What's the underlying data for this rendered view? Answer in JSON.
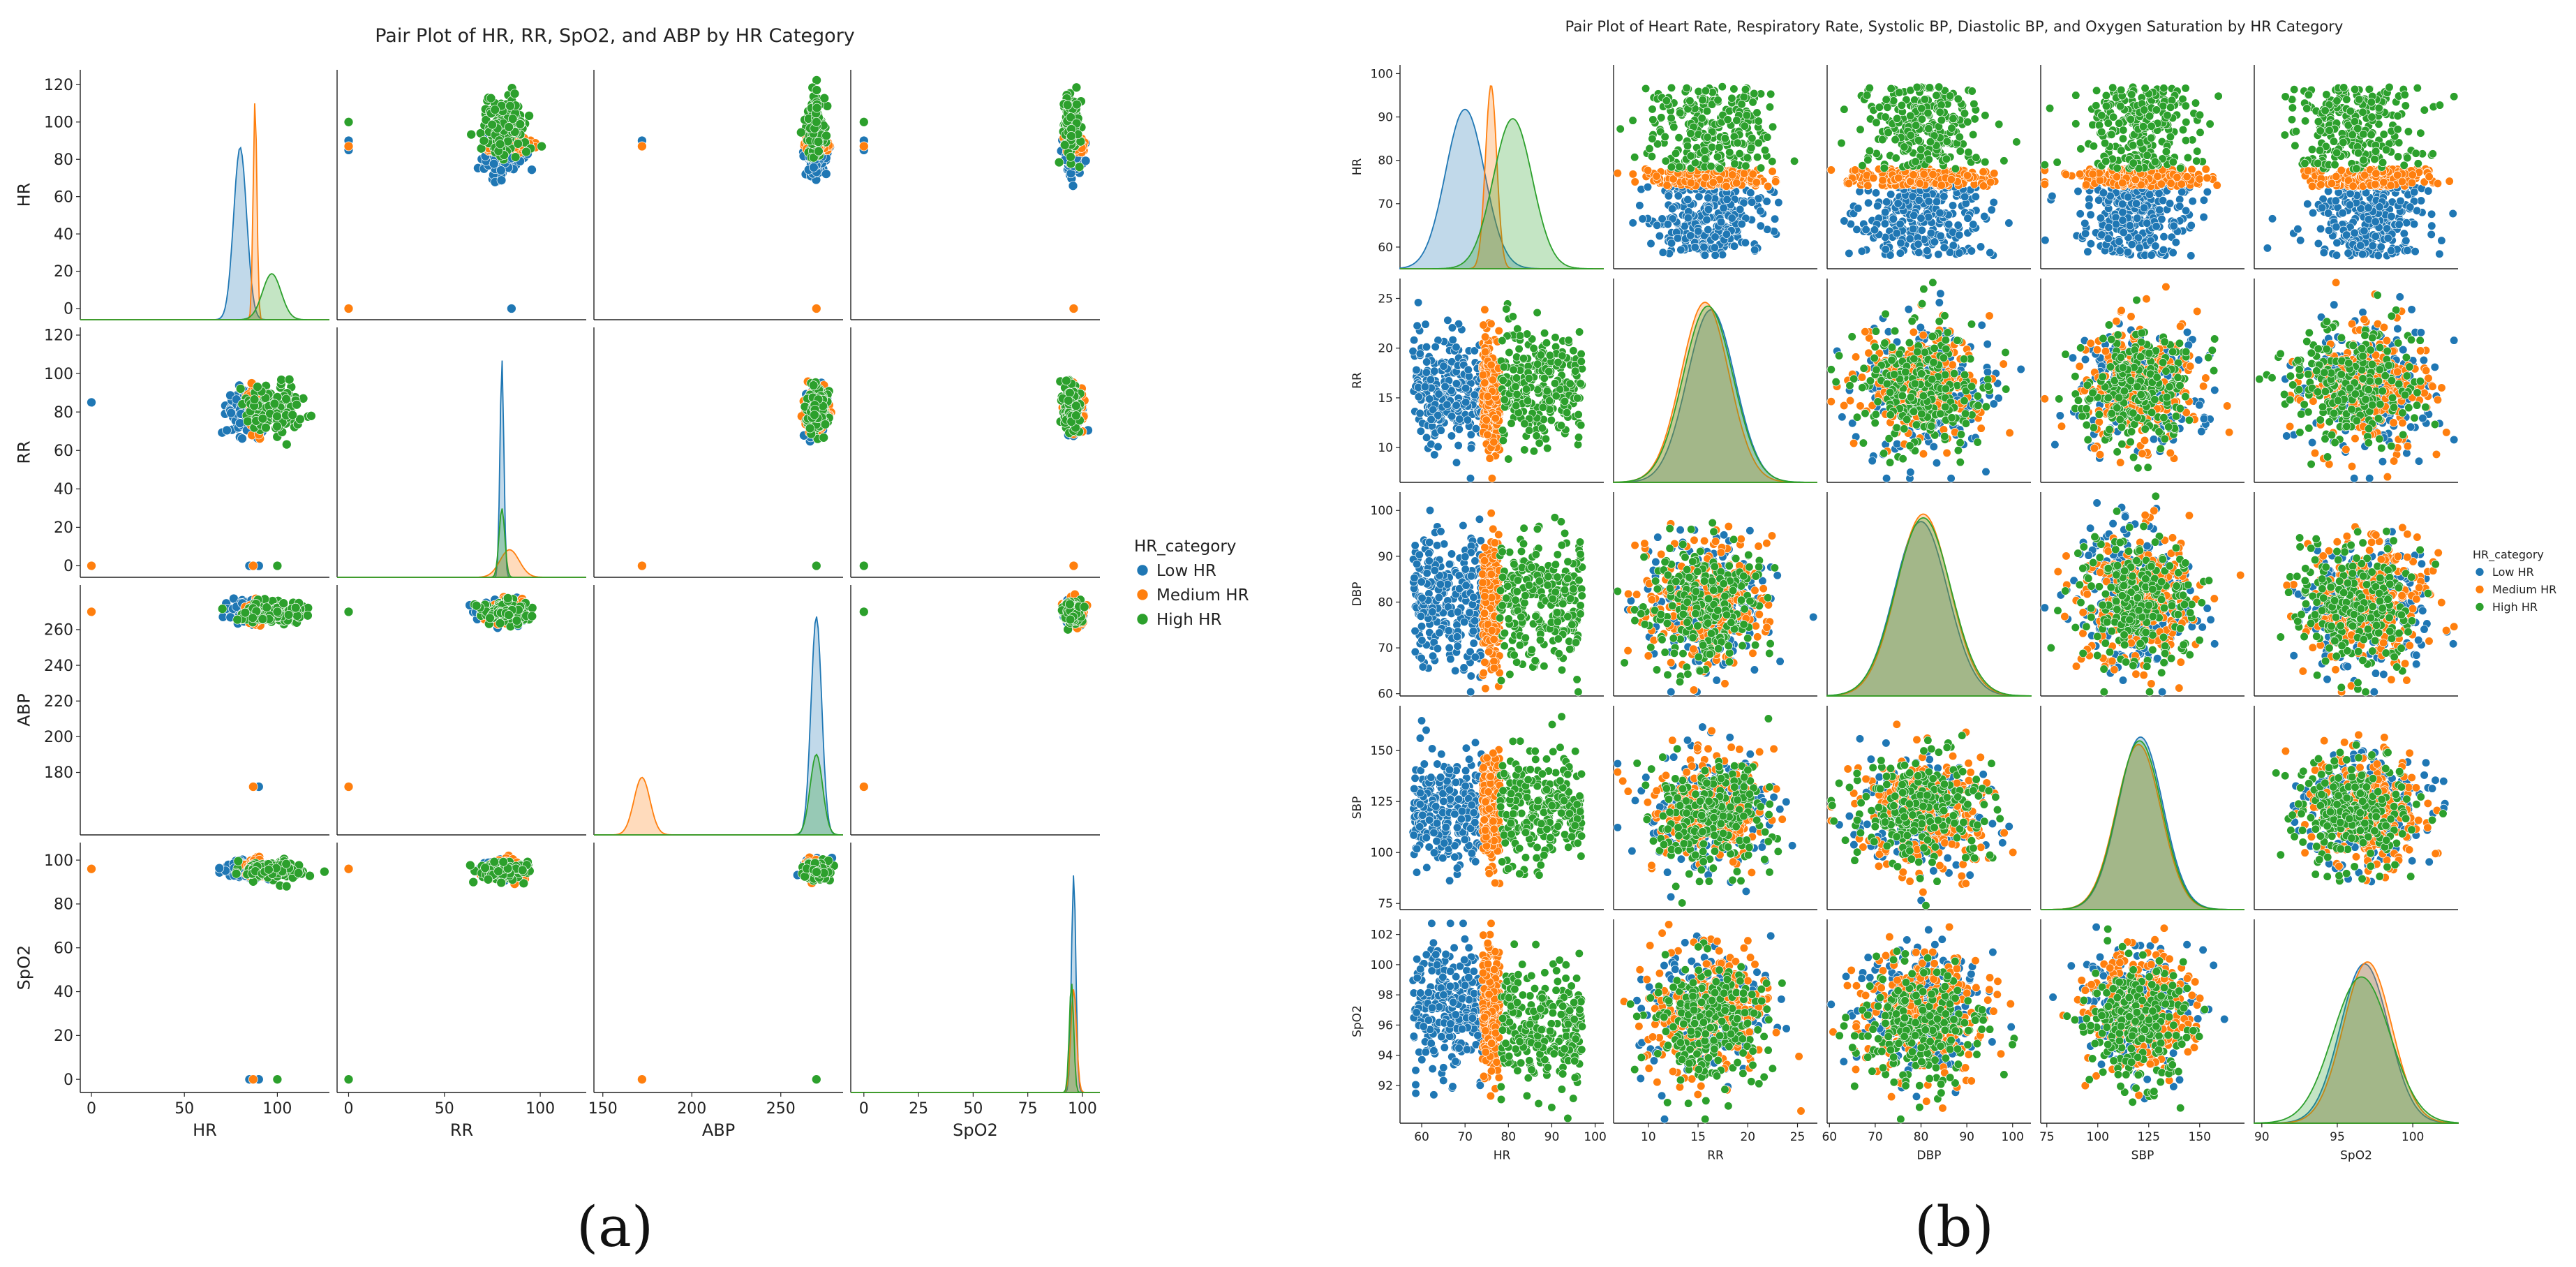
{
  "figure": {
    "panel_a_caption": "(a)",
    "panel_b_caption": "(b)"
  },
  "colors": {
    "Low HR": "#1f77b4",
    "Medium HR": "#ff7f0e",
    "High HR": "#2ca02c"
  },
  "chart_data": [
    {
      "type": "scatter",
      "subtype": "pair_plot",
      "title": "Pair Plot of HR, RR, SpO2, and ABP by HR Category",
      "variables": [
        "HR",
        "RR",
        "ABP",
        "SpO2"
      ],
      "diagonal": "kde",
      "grid": false,
      "legend": {
        "title": "HR_category",
        "placement": "right",
        "entries": [
          "Low HR",
          "Medium HR",
          "High HR"
        ]
      },
      "axes": {
        "HR": {
          "lim": [
            -6,
            128
          ],
          "ticks": [
            0,
            50,
            100
          ],
          "yticks": [
            0,
            20,
            40,
            60,
            80,
            100,
            120
          ]
        },
        "RR": {
          "lim": [
            -6,
            124
          ],
          "ticks": [
            0,
            50,
            100
          ],
          "yticks": [
            0,
            20,
            40,
            60,
            80,
            100,
            120
          ]
        },
        "ABP": {
          "lim": [
            145,
            285
          ],
          "ticks": [
            150,
            200,
            250
          ],
          "yticks": [
            180,
            200,
            220,
            240,
            260
          ]
        },
        "SpO2": {
          "lim": [
            -6,
            108
          ],
          "ticks": [
            0,
            25,
            50,
            75,
            100
          ],
          "yticks": [
            0,
            20,
            40,
            60,
            80,
            100
          ]
        }
      },
      "series": [
        {
          "name": "Low HR",
          "center": {
            "HR": 82,
            "RR": 80,
            "ABP": 270,
            "SpO2": 96
          },
          "spread": {
            "HR": 5,
            "RR": 5,
            "ABP": 3,
            "SpO2": 2
          },
          "outliers": [
            {
              "HR": 0,
              "RR": 85,
              "ABP": 270,
              "SpO2": 96
            },
            {
              "HR": 85,
              "RR": 0,
              "ABP": 270,
              "SpO2": 0
            },
            {
              "HR": 90,
              "RR": 0,
              "ABP": 172,
              "SpO2": 0
            }
          ],
          "kde": {
            "HR": {
              "peak": 80,
              "width": 3.5,
              "height": 0.75
            },
            "RR": {
              "peak": 80,
              "width": 1.0,
              "height": 0.95
            },
            "ABP": {
              "peak": 270,
              "width": 3.0,
              "height": 0.95
            },
            "SpO2": {
              "peak": 96,
              "width": 1.0,
              "height": 0.95
            }
          }
        },
        {
          "name": "Medium HR",
          "center": {
            "HR": 88,
            "RR": 82,
            "ABP": 270,
            "SpO2": 96
          },
          "spread": {
            "HR": 2,
            "RR": 5,
            "ABP": 3,
            "SpO2": 2
          },
          "outliers": [
            {
              "HR": 0,
              "RR": 0,
              "ABP": 270,
              "SpO2": 96
            },
            {
              "HR": 87,
              "RR": 0,
              "ABP": 172,
              "SpO2": 0
            }
          ],
          "kde": {
            "HR": {
              "peak": 88,
              "width": 1.0,
              "height": 0.96
            },
            "RR": {
              "peak": 84,
              "width": 5.0,
              "height": 0.12
            },
            "ABP": {
              "peak": 172,
              "width": 4.5,
              "height": 0.25
            },
            "SpO2": {
              "peak": 96,
              "width": 1.3,
              "height": 0.45
            }
          }
        },
        {
          "name": "High HR",
          "center": {
            "HR": 98,
            "RR": 82,
            "ABP": 270,
            "SpO2": 95
          },
          "spread": {
            "HR": 8,
            "RR": 6,
            "ABP": 3,
            "SpO2": 2
          },
          "outliers": [
            {
              "HR": 100,
              "RR": 0,
              "ABP": 270,
              "SpO2": 0
            }
          ],
          "kde": {
            "HR": {
              "peak": 97,
              "width": 5.0,
              "height": 0.2
            },
            "RR": {
              "peak": 80,
              "width": 1.5,
              "height": 0.3
            },
            "ABP": {
              "peak": 270,
              "width": 3.5,
              "height": 0.35
            },
            "SpO2": {
              "peak": 95,
              "width": 1.0,
              "height": 0.48
            }
          }
        }
      ]
    },
    {
      "type": "scatter",
      "subtype": "pair_plot",
      "title": "Pair Plot of Heart Rate, Respiratory Rate, Systolic BP, Diastolic BP, and Oxygen Saturation by HR Category",
      "variables": [
        "HR",
        "RR",
        "DBP",
        "SBP",
        "SpO2"
      ],
      "diagonal": "kde",
      "grid": false,
      "legend": {
        "title": "HR_category",
        "placement": "right",
        "entries": [
          "Low HR",
          "Medium HR",
          "High HR"
        ]
      },
      "axes": {
        "HR": {
          "lim": [
            55,
            102
          ],
          "ticks": [
            60,
            70,
            80,
            90,
            100
          ]
        },
        "RR": {
          "lim": [
            6.5,
            27
          ],
          "ticks": [
            10,
            15,
            20,
            25
          ]
        },
        "DBP": {
          "lim": [
            59.5,
            104
          ],
          "ticks": [
            60,
            70,
            80,
            90,
            100
          ]
        },
        "SBP": {
          "lim": [
            72,
            172
          ],
          "ticks": [
            75,
            100,
            125,
            150
          ]
        },
        "SpO2": {
          "lim": [
            89.5,
            103
          ],
          "ticks": [
            90,
            95,
            100
          ],
          "yticks": [
            92,
            94,
            96,
            98,
            100,
            102
          ]
        }
      },
      "series": [
        {
          "name": "Low HR",
          "range": {
            "HR": [
              58,
              74
            ]
          },
          "center": {
            "RR": 16,
            "DBP": 80,
            "SBP": 120,
            "SpO2": 97
          },
          "spread": {
            "RR": 3,
            "DBP": 7,
            "SBP": 14,
            "SpO2": 2
          },
          "kde": {
            "HR": {
              "peak": 70,
              "width": 4.5,
              "height": 0.85
            },
            "RR": {
              "peak": 16.3,
              "width": 2.4,
              "height": 0.92
            },
            "DBP": {
              "peak": 80,
              "width": 5.8,
              "height": 0.93
            },
            "SBP": {
              "peak": 121,
              "width": 11,
              "height": 0.92
            },
            "SpO2": {
              "peak": 96.8,
              "width": 1.6,
              "height": 0.85
            }
          }
        },
        {
          "name": "Medium HR",
          "range": {
            "HR": [
              74,
              78
            ]
          },
          "center": {
            "RR": 16,
            "DBP": 80,
            "SBP": 120,
            "SpO2": 97
          },
          "spread": {
            "RR": 3,
            "DBP": 7,
            "SBP": 14,
            "SpO2": 2
          },
          "kde": {
            "HR": {
              "peak": 76,
              "width": 1.3,
              "height": 0.98
            },
            "RR": {
              "peak": 15.7,
              "width": 2.4,
              "height": 0.96
            },
            "DBP": {
              "peak": 80.5,
              "width": 5.8,
              "height": 0.97
            },
            "SBP": {
              "peak": 120,
              "width": 11,
              "height": 0.88
            },
            "SpO2": {
              "peak": 97,
              "width": 1.6,
              "height": 0.86
            }
          }
        },
        {
          "name": "High HR",
          "range": {
            "HR": [
              78,
              97
            ]
          },
          "center": {
            "RR": 16,
            "DBP": 80,
            "SBP": 120,
            "SpO2": 96
          },
          "spread": {
            "RR": 3,
            "DBP": 7,
            "SBP": 14,
            "SpO2": 2
          },
          "kde": {
            "HR": {
              "peak": 81,
              "width": 4.5,
              "height": 0.8
            },
            "RR": {
              "peak": 16,
              "width": 2.5,
              "height": 0.94
            },
            "DBP": {
              "peak": 80.5,
              "width": 6,
              "height": 0.95
            },
            "SBP": {
              "peak": 120.5,
              "width": 11,
              "height": 0.9
            },
            "SpO2": {
              "peak": 96.6,
              "width": 1.9,
              "height": 0.78
            }
          }
        }
      ]
    }
  ]
}
